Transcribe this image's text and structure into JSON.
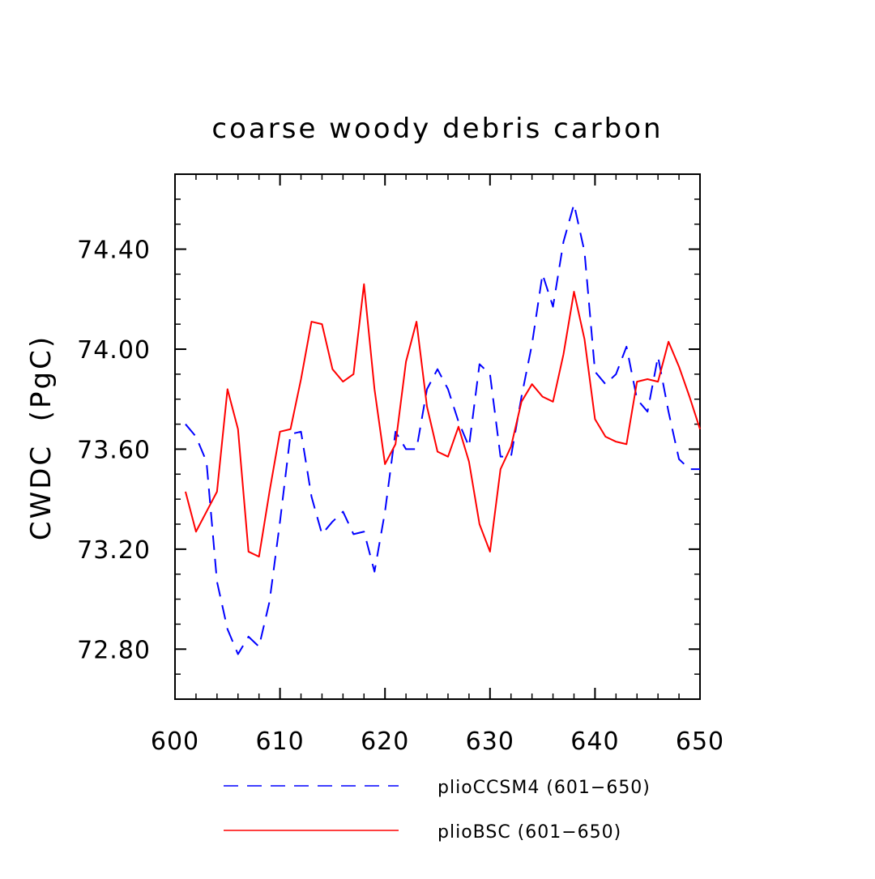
{
  "chart_data": {
    "type": "line",
    "title": "coarse woody debris carbon",
    "xlabel": "",
    "ylabel": "CWDC  (PgC)",
    "xlim": [
      600,
      650
    ],
    "ylim": [
      72.6,
      74.7
    ],
    "x_ticks": [
      600,
      610,
      620,
      630,
      640,
      650
    ],
    "x_tick_labels": [
      "600",
      "610",
      "620",
      "630",
      "640",
      "650"
    ],
    "y_ticks": [
      72.8,
      73.2,
      73.6,
      74.0,
      74.4
    ],
    "y_tick_labels": [
      "72.80",
      "73.20",
      "73.60",
      "74.00",
      "74.40"
    ],
    "y_minor_step": 0.1,
    "x_minor_step": 2,
    "grid": false,
    "legend": "bottom",
    "x": [
      601,
      602,
      603,
      604,
      605,
      606,
      607,
      608,
      609,
      610,
      611,
      612,
      613,
      614,
      615,
      616,
      617,
      618,
      619,
      620,
      621,
      622,
      623,
      624,
      625,
      626,
      627,
      628,
      629,
      630,
      631,
      632,
      633,
      634,
      635,
      636,
      637,
      638,
      639,
      640,
      641,
      642,
      643,
      644,
      645,
      646,
      647,
      648,
      649,
      650
    ],
    "series": [
      {
        "name": "plioCCSM4 (601−650)",
        "color": "#0000ff",
        "style": "dashed",
        "values": [
          73.7,
          73.65,
          73.55,
          73.07,
          72.88,
          72.78,
          72.85,
          72.81,
          72.99,
          73.31,
          73.66,
          73.67,
          73.41,
          73.26,
          73.31,
          73.35,
          73.26,
          73.27,
          73.11,
          73.35,
          73.67,
          73.6,
          73.6,
          73.84,
          73.92,
          73.84,
          73.71,
          73.61,
          73.94,
          73.9,
          73.57,
          73.57,
          73.81,
          74.02,
          74.3,
          74.17,
          74.43,
          74.58,
          74.39,
          73.91,
          73.86,
          73.9,
          74.01,
          73.8,
          73.75,
          73.97,
          73.75,
          73.56,
          73.52,
          73.52
        ]
      },
      {
        "name": "plioBSC (601−650)",
        "color": "#ff0000",
        "style": "solid",
        "values": [
          73.43,
          73.27,
          73.35,
          73.43,
          73.84,
          73.68,
          73.19,
          73.17,
          73.43,
          73.67,
          73.68,
          73.88,
          74.11,
          74.1,
          73.92,
          73.87,
          73.9,
          74.26,
          73.84,
          73.54,
          73.62,
          73.95,
          74.11,
          73.77,
          73.59,
          73.57,
          73.69,
          73.55,
          73.3,
          73.19,
          73.52,
          73.61,
          73.79,
          73.86,
          73.81,
          73.79,
          73.98,
          74.23,
          74.04,
          73.72,
          73.65,
          73.63,
          73.62,
          73.87,
          73.88,
          73.87,
          74.03,
          73.93,
          73.81,
          73.68
        ]
      }
    ]
  }
}
